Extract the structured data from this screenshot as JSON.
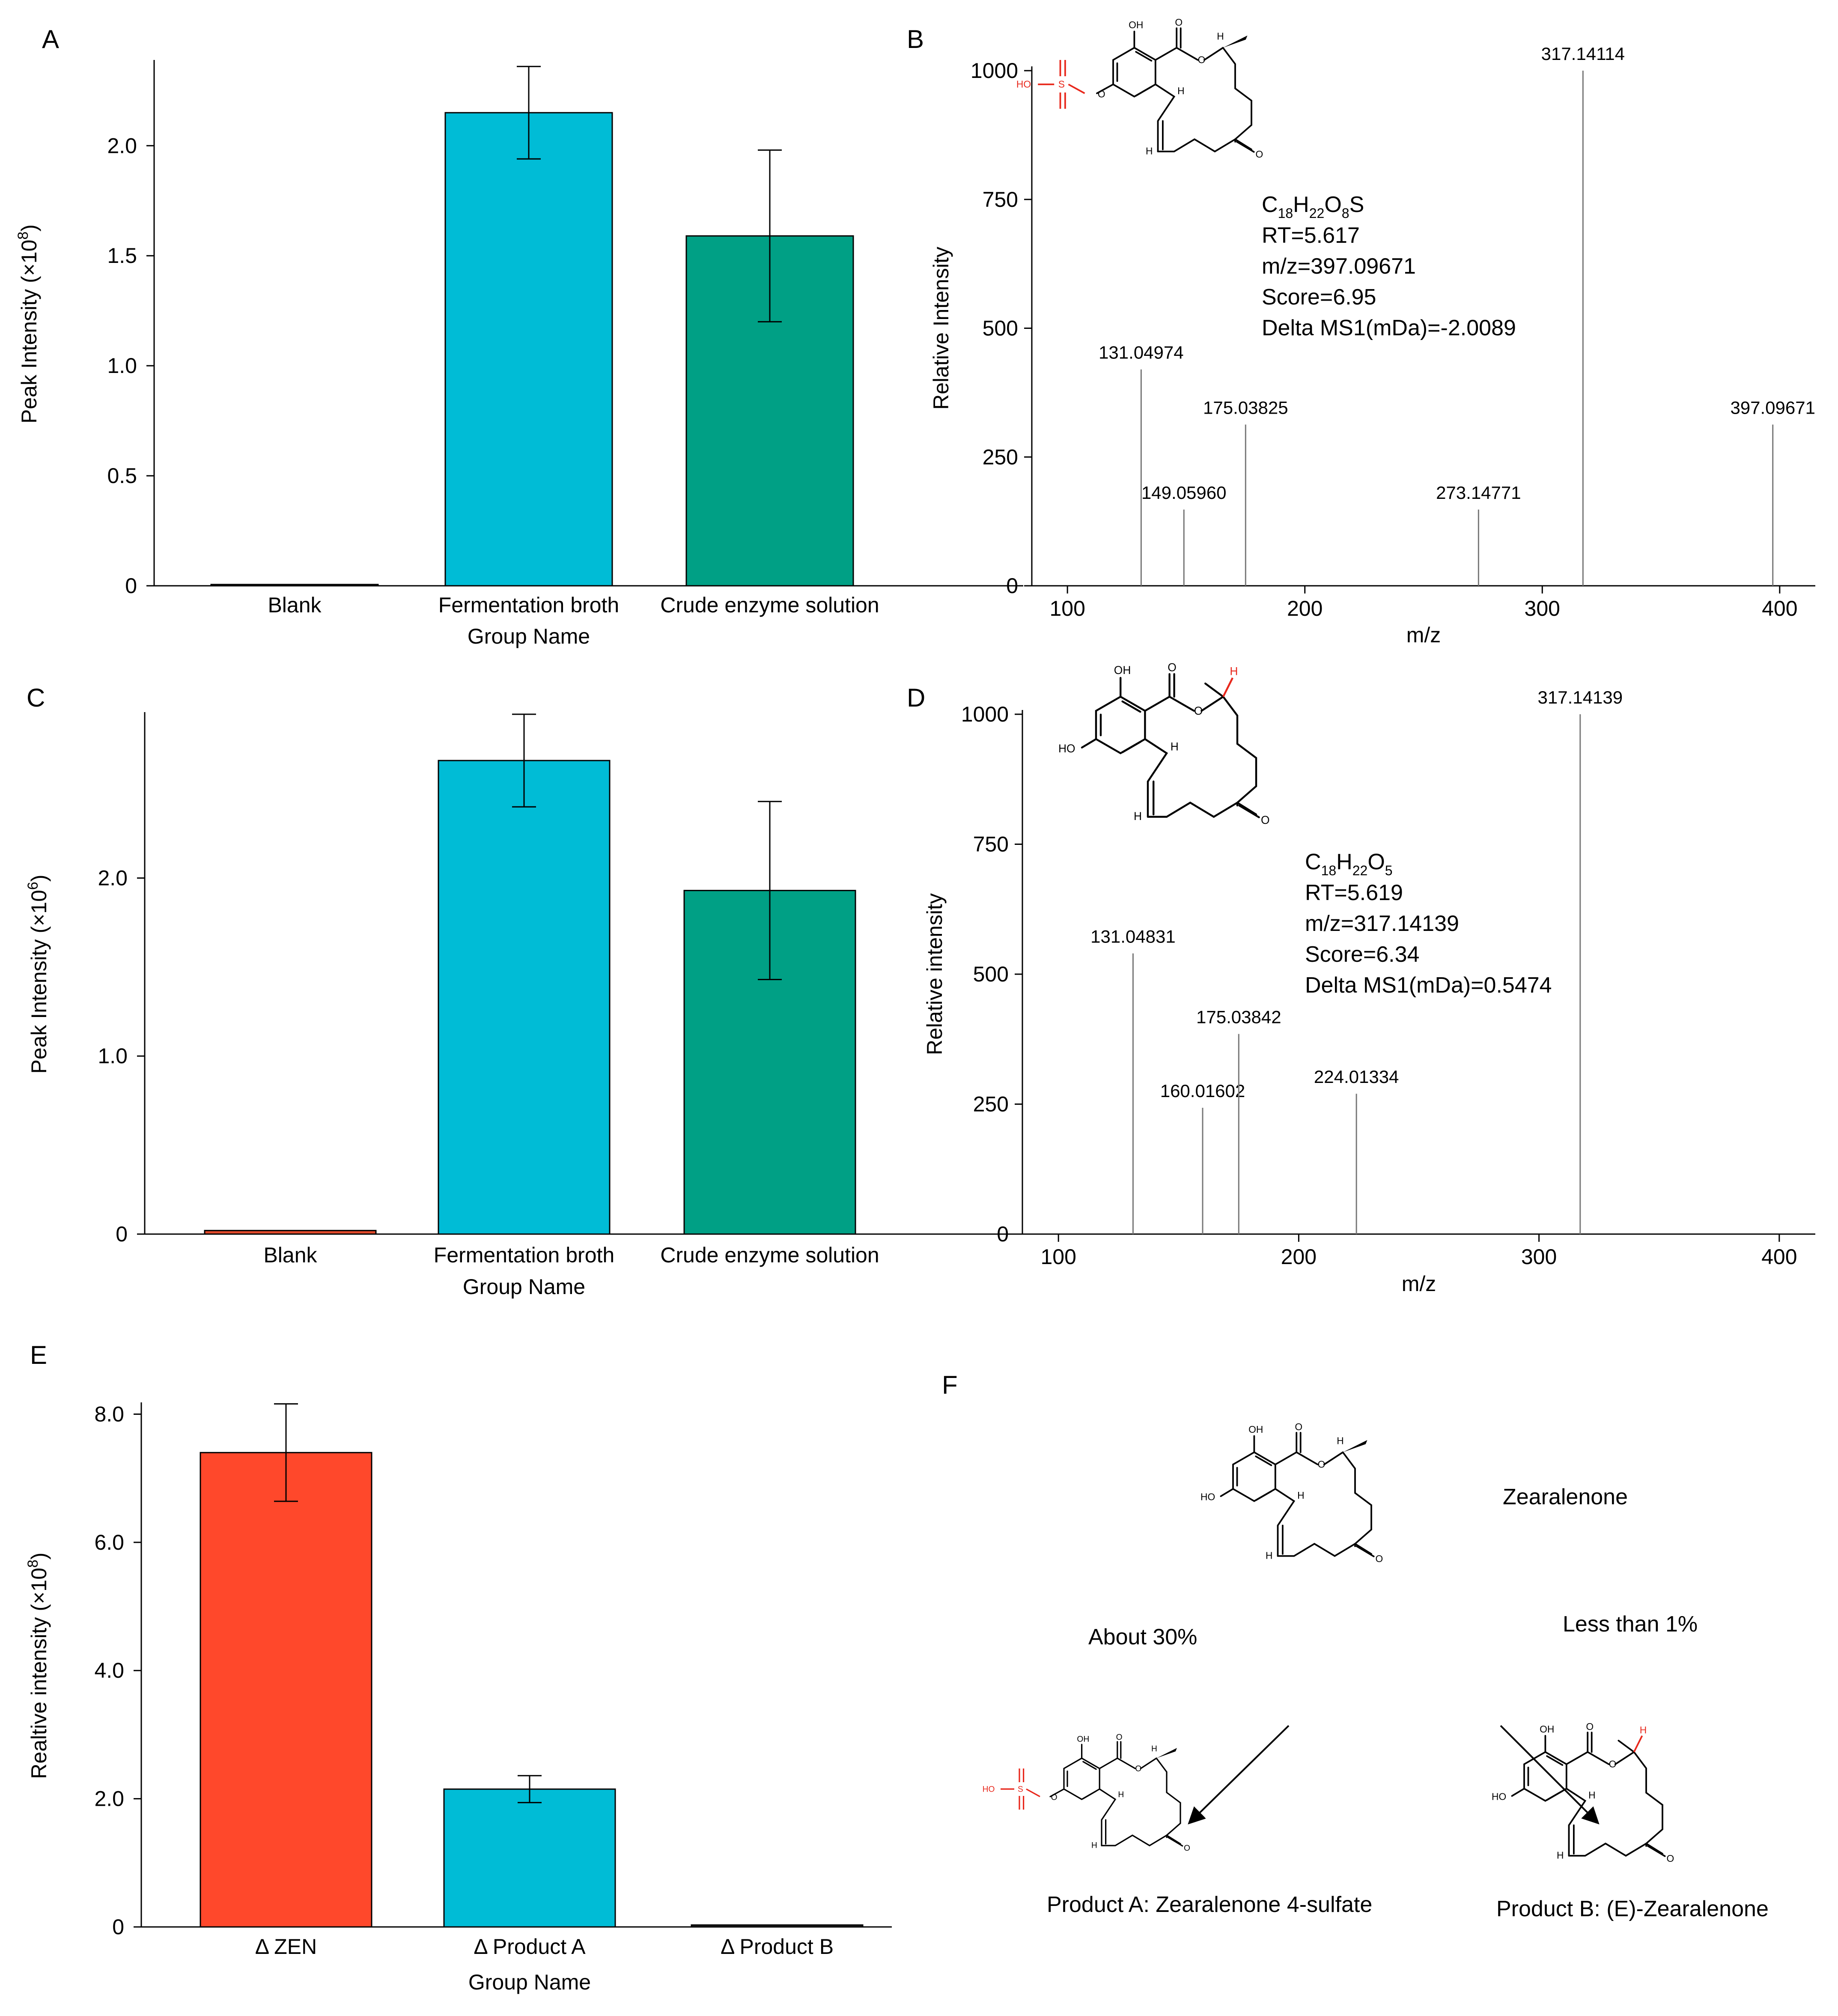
{
  "colors": {
    "blank": "#e14a2b",
    "fermentation": "#00bcd6",
    "crude": "#00a085",
    "zen": "#ff482b",
    "productA": "#00bcd6",
    "productB": "#333333",
    "stem": "#777777",
    "red": "#e8281c"
  },
  "panels": {
    "A": {
      "letter": "A"
    },
    "B": {
      "letter": "B"
    },
    "C": {
      "letter": "C"
    },
    "D": {
      "letter": "D"
    },
    "E": {
      "letter": "E"
    },
    "F": {
      "letter": "F"
    }
  },
  "chart_data": [
    {
      "id": "A",
      "type": "bar",
      "categories": [
        "Blank",
        "Fermentation broth",
        "Crude enzyme solution"
      ],
      "values": [
        0.003,
        2.15,
        1.59
      ],
      "errors": [
        0,
        0.21,
        0.39
      ],
      "colors": [
        "#e14a2b",
        "#00bcd6",
        "#00a085"
      ],
      "yticks": [
        0,
        0.5,
        1.0,
        1.5,
        2.0
      ],
      "ytick_labels": [
        "0",
        "0.5",
        "1.0",
        "1.5",
        "2.0"
      ],
      "ylim": [
        0,
        2.38
      ],
      "ylabel": "Peak Intensity  (×10",
      "ylabel_exp": "8",
      "ylabel_close": ")",
      "xlabel": "Group Name"
    },
    {
      "id": "B",
      "type": "stem",
      "peaks": [
        {
          "mz": 131.04974,
          "intensity": 420,
          "label": "131.04974"
        },
        {
          "mz": 149.0596,
          "intensity": 148,
          "label": "149.05960"
        },
        {
          "mz": 175.03825,
          "intensity": 313,
          "label": "175.03825"
        },
        {
          "mz": 273.14771,
          "intensity": 148,
          "label": "273.14771"
        },
        {
          "mz": 317.14114,
          "intensity": 1000,
          "label": "317.14114"
        },
        {
          "mz": 397.09671,
          "intensity": 313,
          "label": "397.09671"
        }
      ],
      "xticks": [
        100,
        200,
        300,
        400
      ],
      "xtick_labels": [
        "100",
        "200",
        "300",
        "400"
      ],
      "yticks": [
        0,
        250,
        500,
        750,
        1000
      ],
      "ytick_labels": [
        "0",
        "250",
        "500",
        "750",
        "1000"
      ],
      "xlim": [
        85,
        415
      ],
      "ylim": [
        0,
        1000
      ],
      "xlabel": "m/z",
      "ylabel": "Relative Intensity",
      "info": {
        "formula": [
          "C",
          "18",
          "H",
          "22",
          "O",
          "8",
          "S"
        ],
        "rt": "RT=5.617",
        "mz": "m/z=397.09671",
        "score": "Score=6.95",
        "delta": "Delta MS1(mDa)=-2.0089"
      }
    },
    {
      "id": "C",
      "type": "bar",
      "categories": [
        "Blank",
        "Fermentation broth",
        "Crude enzyme solution"
      ],
      "values": [
        0.02,
        2.66,
        1.93
      ],
      "errors": [
        0,
        0.26,
        0.5
      ],
      "colors": [
        "#e14a2b",
        "#00bcd6",
        "#00a085"
      ],
      "yticks": [
        0,
        1.0,
        2.0
      ],
      "ytick_labels": [
        "0",
        "1.0",
        "2.0"
      ],
      "ylim": [
        0,
        2.92
      ],
      "ylabel": "Peak Intensity  (×10",
      "ylabel_exp": "6",
      "ylabel_close": ")",
      "xlabel": "Group Name"
    },
    {
      "id": "D",
      "type": "stem",
      "peaks": [
        {
          "mz": 131.04831,
          "intensity": 540,
          "label": "131.04831"
        },
        {
          "mz": 160.01602,
          "intensity": 243,
          "label": "160.01602"
        },
        {
          "mz": 175.03842,
          "intensity": 385,
          "label": "175.03842"
        },
        {
          "mz": 224.01334,
          "intensity": 270,
          "label": "224.01334"
        },
        {
          "mz": 317.14139,
          "intensity": 1000,
          "label": "317.14139"
        }
      ],
      "xticks": [
        100,
        200,
        300,
        400
      ],
      "xtick_labels": [
        "100",
        "200",
        "300",
        "400"
      ],
      "yticks": [
        0,
        250,
        500,
        750,
        1000
      ],
      "ytick_labels": [
        "0",
        "250",
        "500",
        "750",
        "1000"
      ],
      "xlim": [
        85,
        415
      ],
      "ylim": [
        0,
        1000
      ],
      "xlabel": "m/z",
      "ylabel": "Relative intensity",
      "info": {
        "formula": [
          "C",
          "18",
          "H",
          "22",
          "O",
          "5",
          ""
        ],
        "rt": "RT=5.619",
        "mz": "m/z=317.14139",
        "score": "Score=6.34",
        "delta": "Delta MS1(mDa)=0.5474"
      }
    },
    {
      "id": "E",
      "type": "bar",
      "categories": [
        "Δ ZEN",
        "Δ Product A",
        "Δ Product B"
      ],
      "values": [
        7.4,
        2.15,
        0.03
      ],
      "errors": [
        0.76,
        0.21,
        0
      ],
      "colors": [
        "#ff482b",
        "#00bcd6",
        "#333333"
      ],
      "yticks": [
        0,
        2.0,
        4.0,
        6.0,
        8.0
      ],
      "ytick_labels": [
        "0",
        "2.0",
        "4.0",
        "6.0",
        "8.0"
      ],
      "ylim": [
        0,
        8.15
      ],
      "ylabel": "Realtive intensity (×10",
      "ylabel_exp": "8",
      "ylabel_close": ")",
      "xlabel": "Group Name"
    }
  ],
  "panelF": {
    "parent": "Zearalenone",
    "left_arrow": "About 30%",
    "right_arrow": "Less than 1%",
    "product_a": "Product A: Zearalenone 4-sulfate",
    "product_b": "Product B: (E)-Zearalenone"
  },
  "chem": {
    "oh": "OH",
    "ho": "HO",
    "o": "O",
    "h": "H",
    "s": "S"
  }
}
